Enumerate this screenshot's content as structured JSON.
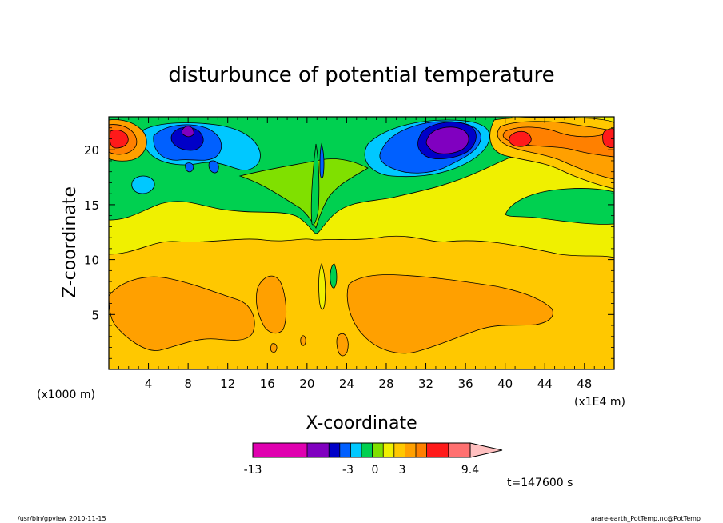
{
  "chart_data": {
    "type": "heatmap",
    "title": "disturbunce of potential temperature",
    "xlabel": "X-coordinate",
    "ylabel": "Z-coordinate",
    "x_unit_left": "(x1000 m)",
    "x_unit_right": "(x1E4 m)",
    "xlim": [
      0,
      51
    ],
    "ylim": [
      0,
      23
    ],
    "x_ticks": [
      "4",
      "8",
      "12",
      "16",
      "20",
      "24",
      "28",
      "32",
      "36",
      "40",
      "44",
      "48"
    ],
    "x_tick_values": [
      4,
      8,
      12,
      16,
      20,
      24,
      28,
      32,
      36,
      40,
      44,
      48
    ],
    "y_ticks": [
      "5",
      "10",
      "15",
      "20"
    ],
    "y_tick_values": [
      5,
      10,
      15,
      20
    ],
    "colorbar": {
      "labels": [
        {
          "text": "-13",
          "at": 0
        },
        {
          "text": "-3",
          "at": 7
        },
        {
          "text": "0",
          "at": 9
        },
        {
          "text": "3",
          "at": 11
        },
        {
          "text": "9.4",
          "at": 16
        }
      ],
      "colors": [
        "#e000b0",
        "#e000b0",
        "#e000b0",
        "#e000b0",
        "#e000b0",
        "#8000c0",
        "#8000c0",
        "#0000c8",
        "#0060ff",
        "#00c8ff",
        "#00d050",
        "#80e000",
        "#f0f000",
        "#ffc800",
        "#ffa000",
        "#ff8000",
        "#ff1a1a",
        "#ff1a1a",
        "#ff7070",
        "#ff7070"
      ],
      "extend_color": "#ffc0c0"
    },
    "annotation": "t=147600 s"
  },
  "footer": {
    "left": "/usr/bin/gpview   2010-11-15",
    "right": "arare-earth_PotTemp.nc@PotTemp"
  },
  "field_colors": {
    "orange": "#ffa000",
    "gold": "#ffc800",
    "yellow": "#f0f000",
    "lime": "#80e000",
    "green": "#00d050",
    "cyan": "#00c8ff",
    "blue": "#0060ff",
    "navy": "#0000c8",
    "purple": "#8000c0",
    "red": "#ff1a1a",
    "salmon": "#ff8000"
  }
}
